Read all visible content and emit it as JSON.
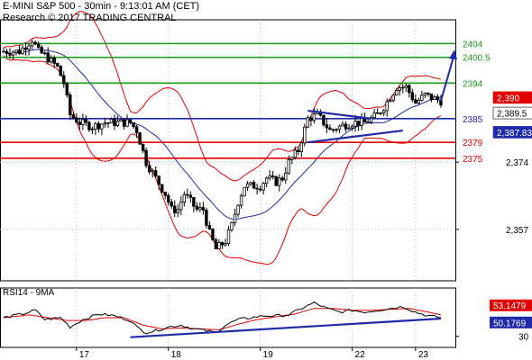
{
  "header": {
    "title": "E-MINI S&P 500 - 30min - 9:13:01 AM (CET)",
    "credit": "Research © 2017 TRADING CENTRAL"
  },
  "chart_data": {
    "type": "candlestick",
    "instrument": "E-MINI S&P 500",
    "timeframe": "30min",
    "x_labels": [
      "17",
      "18",
      "19",
      "22",
      "23"
    ],
    "y_ticks": [
      2357,
      2374
    ],
    "ylim": [
      2344,
      2410
    ],
    "grid": true,
    "levels": [
      {
        "value": 2404,
        "label": "2404",
        "color": "#1a9a1a"
      },
      {
        "value": 2400.5,
        "label": "2400.5",
        "color": "#1a9a1a"
      },
      {
        "value": 2394,
        "label": "2394",
        "color": "#1a9a1a"
      },
      {
        "value": 2385,
        "label": "2385",
        "color": "#1e2aa8"
      },
      {
        "value": 2379,
        "label": "2379",
        "color": "#e00000"
      },
      {
        "value": 2375,
        "label": "2375",
        "color": "#e00000"
      }
    ],
    "price_tags": [
      {
        "value": 2390,
        "label": "2,390",
        "bg": "#e00000",
        "fg": "#ffffff"
      },
      {
        "value": 2389.5,
        "label": "2,389.5",
        "bg": "#ffffff",
        "fg": "#000000"
      },
      {
        "value": 2387.83,
        "label": "2,387.83",
        "bg": "#1e2aa8",
        "fg": "#ffffff"
      }
    ],
    "close_path": [
      [
        0,
        2402
      ],
      [
        5,
        2402
      ],
      [
        9,
        2405
      ],
      [
        11,
        2402
      ],
      [
        13,
        2401
      ],
      [
        17,
        2398
      ],
      [
        19,
        2394
      ],
      [
        21,
        2386
      ],
      [
        24,
        2384
      ],
      [
        28,
        2383
      ],
      [
        32,
        2384
      ],
      [
        36,
        2384
      ],
      [
        40,
        2384
      ],
      [
        42,
        2382
      ],
      [
        45,
        2374
      ],
      [
        48,
        2370
      ],
      [
        51,
        2366
      ],
      [
        53,
        2362
      ],
      [
        55,
        2362
      ],
      [
        57,
        2366
      ],
      [
        59,
        2364
      ],
      [
        61,
        2362
      ],
      [
        63,
        2362
      ],
      [
        65,
        2356
      ],
      [
        67,
        2352
      ],
      [
        70,
        2354
      ],
      [
        72,
        2358
      ],
      [
        74,
        2364
      ],
      [
        76,
        2368
      ],
      [
        79,
        2368
      ],
      [
        81,
        2368
      ],
      [
        83,
        2370
      ],
      [
        86,
        2369
      ],
      [
        88,
        2370
      ],
      [
        90,
        2374
      ],
      [
        93,
        2377
      ],
      [
        96,
        2385
      ],
      [
        99,
        2386
      ],
      [
        101,
        2384
      ],
      [
        103,
        2382
      ],
      [
        106,
        2383
      ],
      [
        110,
        2384
      ],
      [
        114,
        2384
      ],
      [
        116,
        2385
      ],
      [
        118,
        2386
      ],
      [
        120,
        2388
      ],
      [
        124,
        2393
      ],
      [
        127,
        2393
      ],
      [
        130,
        2389
      ],
      [
        133,
        2391
      ],
      [
        136,
        2390
      ],
      [
        138,
        2389.5
      ]
    ],
    "trendlines": [
      {
        "from": [
          96,
          2387
        ],
        "to": [
          116,
          2385
        ]
      },
      {
        "from": [
          96,
          2379
        ],
        "to": [
          126,
          2382
        ]
      }
    ],
    "projection": {
      "from": [
        138,
        2389.5
      ],
      "to": [
        142,
        2402
      ]
    },
    "rsi": {
      "title": "RSI14 - 9MA",
      "ylim": [
        20,
        80
      ],
      "ticks": [
        30
      ],
      "path": [
        [
          0,
          50
        ],
        [
          6,
          54
        ],
        [
          10,
          58
        ],
        [
          13,
          48
        ],
        [
          18,
          50
        ],
        [
          21,
          40
        ],
        [
          25,
          48
        ],
        [
          30,
          54
        ],
        [
          35,
          52
        ],
        [
          40,
          47
        ],
        [
          42,
          40
        ],
        [
          45,
          34
        ],
        [
          48,
          36
        ],
        [
          52,
          40
        ],
        [
          56,
          42
        ],
        [
          60,
          38
        ],
        [
          64,
          36
        ],
        [
          67,
          34
        ],
        [
          70,
          42
        ],
        [
          74,
          48
        ],
        [
          78,
          50
        ],
        [
          82,
          52
        ],
        [
          86,
          52
        ],
        [
          90,
          53
        ],
        [
          94,
          60
        ],
        [
          98,
          66
        ],
        [
          102,
          60
        ],
        [
          106,
          56
        ],
        [
          110,
          58
        ],
        [
          114,
          56
        ],
        [
          118,
          58
        ],
        [
          122,
          60
        ],
        [
          126,
          62
        ],
        [
          130,
          56
        ],
        [
          134,
          52
        ],
        [
          138,
          50.18
        ]
      ],
      "ma_path": [
        [
          0,
          50
        ],
        [
          8,
          53
        ],
        [
          14,
          50
        ],
        [
          20,
          47
        ],
        [
          26,
          47
        ],
        [
          32,
          50
        ],
        [
          38,
          50
        ],
        [
          44,
          42
        ],
        [
          50,
          38
        ],
        [
          56,
          39
        ],
        [
          62,
          38
        ],
        [
          68,
          37
        ],
        [
          74,
          43
        ],
        [
          80,
          48
        ],
        [
          86,
          51
        ],
        [
          92,
          54
        ],
        [
          98,
          60
        ],
        [
          104,
          60
        ],
        [
          110,
          58
        ],
        [
          116,
          58
        ],
        [
          122,
          59
        ],
        [
          128,
          60
        ],
        [
          134,
          56
        ],
        [
          138,
          53.15
        ]
      ],
      "trendline": {
        "from": [
          40,
          29
        ],
        "to": [
          138,
          49
        ]
      },
      "tags": [
        {
          "value": 53.1479,
          "label": "53.1479",
          "bg": "#e00000",
          "fg": "#ffffff"
        },
        {
          "value": 50.1769,
          "label": "50.1769",
          "bg": "#1e2aa8",
          "fg": "#ffffff"
        }
      ]
    }
  }
}
